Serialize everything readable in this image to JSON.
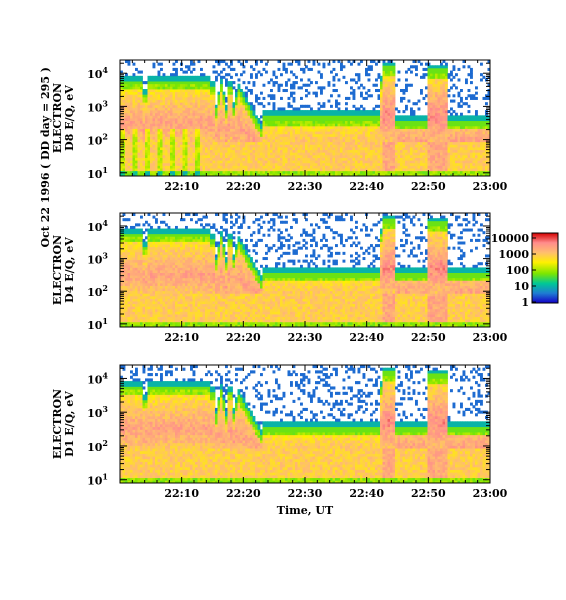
{
  "chart_data": [
    {
      "type": "heatmap",
      "panel": "D8",
      "ylabel_lines": [
        "( DD day = 295 )",
        "ELECTRON",
        "D8 E/Q, eV"
      ],
      "ylabel_prefix": "Oct 22 1996",
      "yscale": "log",
      "ylim": [
        8,
        25000
      ],
      "ytick_labels": [
        {
          "base": "10",
          "exp": "1"
        },
        {
          "base": "10",
          "exp": "2"
        },
        {
          "base": "10",
          "exp": "3"
        },
        {
          "base": "10",
          "exp": "4"
        }
      ],
      "xlim": [
        "22:00",
        "23:00"
      ],
      "xtick_labels": [
        "22:10",
        "22:20",
        "22:30",
        "22:40",
        "22:50",
        "23:00"
      ],
      "show_xtick_labels": true
    },
    {
      "type": "heatmap",
      "panel": "D4",
      "ylabel_lines": [
        "ELECTRON",
        "D4 E/Q, eV"
      ],
      "yscale": "log",
      "ylim": [
        8,
        25000
      ],
      "ytick_labels": [
        {
          "base": "10",
          "exp": "1"
        },
        {
          "base": "10",
          "exp": "2"
        },
        {
          "base": "10",
          "exp": "3"
        },
        {
          "base": "10",
          "exp": "4"
        }
      ],
      "xlim": [
        "22:00",
        "23:00"
      ],
      "xtick_labels": [
        "22:10",
        "22:20",
        "22:30",
        "22:40",
        "22:50",
        "23:00"
      ],
      "show_xtick_labels": true,
      "colorbar": {
        "scale": "log",
        "labels": [
          "10000",
          "1000",
          "100",
          "10",
          "1"
        ],
        "colors": [
          "#d40000",
          "#ff8c8c",
          "#ffbe6e",
          "#fff000",
          "#7ce600",
          "#00c896",
          "#1e7dd2",
          "#1400c8"
        ]
      }
    },
    {
      "type": "heatmap",
      "panel": "D1",
      "ylabel_lines": [
        "ELECTRON",
        "D1 E/Q, eV"
      ],
      "yscale": "log",
      "ylim": [
        8,
        25000
      ],
      "ytick_labels": [
        {
          "base": "10",
          "exp": "1"
        },
        {
          "base": "10",
          "exp": "2"
        },
        {
          "base": "10",
          "exp": "3"
        },
        {
          "base": "10",
          "exp": "4"
        }
      ],
      "xlim": [
        "22:00",
        "23:00"
      ],
      "xtick_labels": [
        "22:10",
        "22:20",
        "22:30",
        "22:40",
        "22:50",
        "23:00"
      ],
      "show_xtick_labels": true,
      "xlabel": "Time, UT"
    }
  ]
}
